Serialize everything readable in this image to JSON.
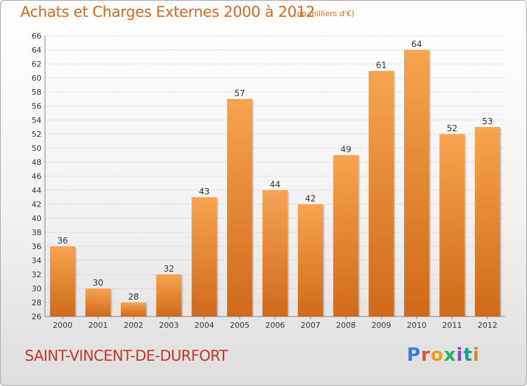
{
  "header": {
    "title": "Achats et Charges Externes 2000 à 2012",
    "subtitle": "(en milliers d'€)"
  },
  "footer": {
    "commune": "SAINT-VINCENT-DE-DURFORT",
    "logo_text": "Proxiti",
    "logo_colors": [
      "#3a7bd5",
      "#e74c3c",
      "#f39c12",
      "#27ae60",
      "#8e44ad",
      "#16a085",
      "#e67e22"
    ]
  },
  "colors": {
    "bar_top": "#f7a44f",
    "bar_bottom": "#cf6a1a",
    "grid": "#cccccc",
    "axis": "#888888"
  },
  "chart_data": {
    "type": "bar",
    "title": "Achats et Charges Externes 2000 à 2012",
    "subtitle": "(en milliers d'€)",
    "categories": [
      "2000",
      "2001",
      "2002",
      "2003",
      "2004",
      "2005",
      "2006",
      "2007",
      "2008",
      "2009",
      "2010",
      "2011",
      "2012"
    ],
    "values": [
      36,
      30,
      28,
      32,
      43,
      57,
      44,
      42,
      49,
      61,
      64,
      52,
      53
    ],
    "ylim": [
      26,
      66
    ],
    "ytick_step": 2,
    "grid": true,
    "data_labels": true
  }
}
